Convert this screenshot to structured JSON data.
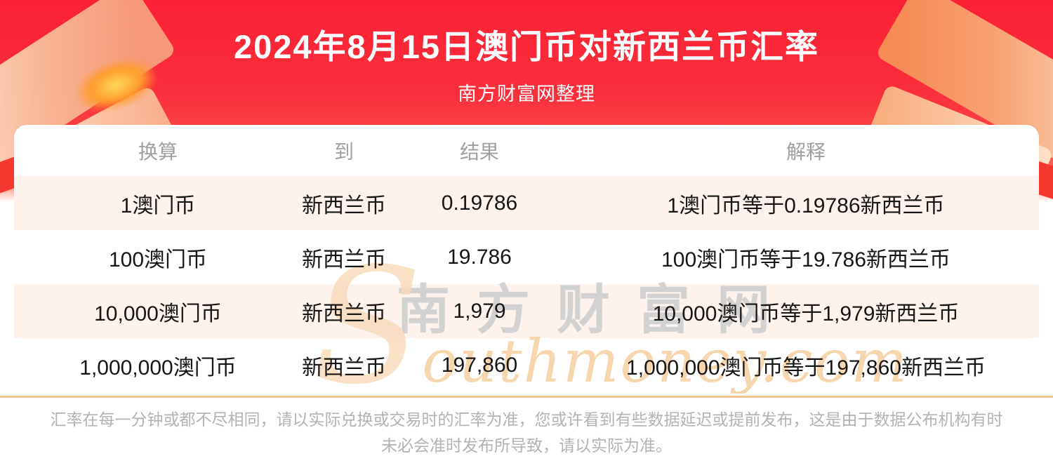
{
  "colors": {
    "brand_red": "#fa2133",
    "row_stripe": "#fdf3ec",
    "divider": "#f4c28c",
    "column_header_text": "#a0a0a0",
    "body_text": "#161616",
    "footer_text": "#b3b3b1",
    "title_text": "#ffffff",
    "watermark_gray": "#d2d2d2",
    "watermark_orange": "#f6cfa0"
  },
  "chart_data": {
    "type": "table",
    "title": "2024年8月15日澳门币对新西兰币汇率",
    "subtitle": "南方财富网整理",
    "columns": [
      "换算",
      "到",
      "结果",
      "解释"
    ],
    "rows": [
      [
        "1澳门币",
        "新西兰币",
        "0.19786",
        "1澳门币等于0.19786新西兰币"
      ],
      [
        "100澳门币",
        "新西兰币",
        "19.786",
        "100澳门币等于19.786新西兰币"
      ],
      [
        "10,000澳门币",
        "新西兰币",
        "1,979",
        "10,000澳门币等于1,979新西兰币"
      ],
      [
        "1,000,000澳门币",
        "新西兰币",
        "197,860",
        "1,000,000澳门币等于197,860新西兰币"
      ]
    ]
  },
  "watermark": {
    "cn": "南方财富网",
    "en_initial": "S",
    "en_rest": "outhmoney.com"
  },
  "footer": {
    "disclaimer": "汇率在每一分钟或都不尽相同，请以实际兑换或交易时的汇率为准，您或许看到有些数据延迟或提前发布，这是由于数据公布机构有时未必会准时发布所导致，请以实际为准。"
  }
}
